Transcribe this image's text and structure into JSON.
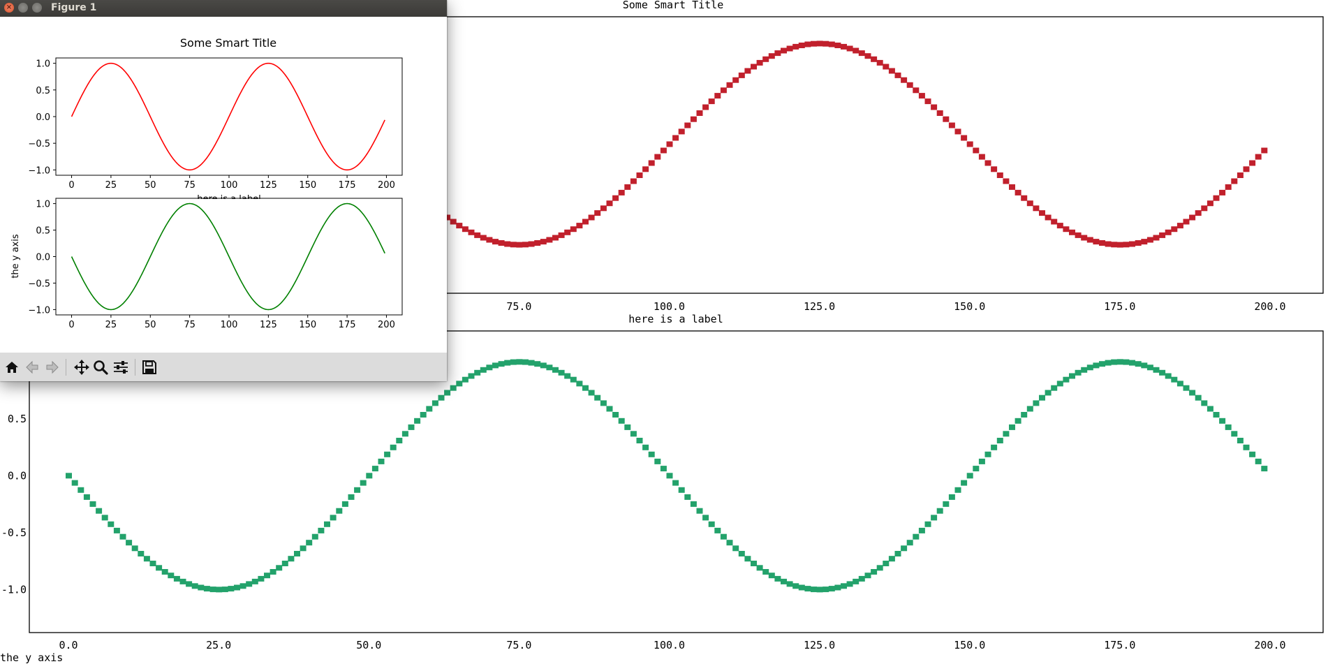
{
  "window": {
    "title": "Figure 1"
  },
  "toolbar": {
    "buttons": [
      "home-icon",
      "back-arrow-icon",
      "forward-arrow-icon",
      "pan-icon",
      "zoom-icon",
      "configure-subplots-icon",
      "save-icon"
    ]
  },
  "colors": {
    "mpl_red": "#ff0000",
    "mpl_green": "#008000",
    "term_red": "#c1202c",
    "term_green": "#23a26b"
  },
  "chart_data": [
    {
      "id": "mpl-top",
      "type": "line",
      "title": "Some Smart Title",
      "xlabel": "here is a label",
      "ylabel": "",
      "xlim": [
        -10,
        210
      ],
      "ylim": [
        -1.1,
        1.1
      ],
      "xticks": [
        0,
        25,
        50,
        75,
        100,
        125,
        150,
        175,
        200
      ],
      "yticks": [
        1.0,
        0.5,
        0.0,
        -0.5,
        -1.0
      ],
      "series": [
        {
          "function": "sin",
          "x": [
            0,
            199
          ],
          "period": 100
        }
      ]
    },
    {
      "id": "mpl-bottom",
      "type": "line",
      "title": "",
      "xlabel": "",
      "ylabel": "the y axis",
      "xlim": [
        -10,
        210
      ],
      "ylim": [
        -1.1,
        1.1
      ],
      "xticks": [
        0,
        25,
        50,
        75,
        100,
        125,
        150,
        175,
        200
      ],
      "yticks": [
        1.0,
        0.5,
        0.0,
        -0.5,
        -1.0
      ],
      "series": [
        {
          "function": "-sin",
          "x": [
            0,
            199
          ],
          "period": 100
        }
      ]
    },
    {
      "id": "term-top",
      "type": "line",
      "title": "Some Smart Title",
      "xlabel": "here is a label",
      "xticks": [
        "75.0",
        "100.0",
        "125.0",
        "150.0",
        "175.0",
        "200.0"
      ],
      "xlim": [
        -10,
        210
      ],
      "ylim": [
        -1.1,
        1.1
      ],
      "series": [
        {
          "function": "sin",
          "x": [
            0,
            199
          ],
          "period": 100
        }
      ]
    },
    {
      "id": "term-bottom",
      "type": "line",
      "title": "",
      "xlabel": "",
      "ylabel": "the y axis",
      "xticks": [
        "0.0",
        "25.0",
        "50.0",
        "75.0",
        "100.0",
        "125.0",
        "150.0",
        "175.0",
        "200.0"
      ],
      "yticks": [
        "0.5",
        "0.0",
        "-0.5",
        "-1.0"
      ],
      "xlim": [
        -10,
        210
      ],
      "ylim": [
        -1.2,
        1.1
      ],
      "series": [
        {
          "function": "-sin",
          "x": [
            0,
            199
          ],
          "period": 100
        }
      ]
    }
  ]
}
